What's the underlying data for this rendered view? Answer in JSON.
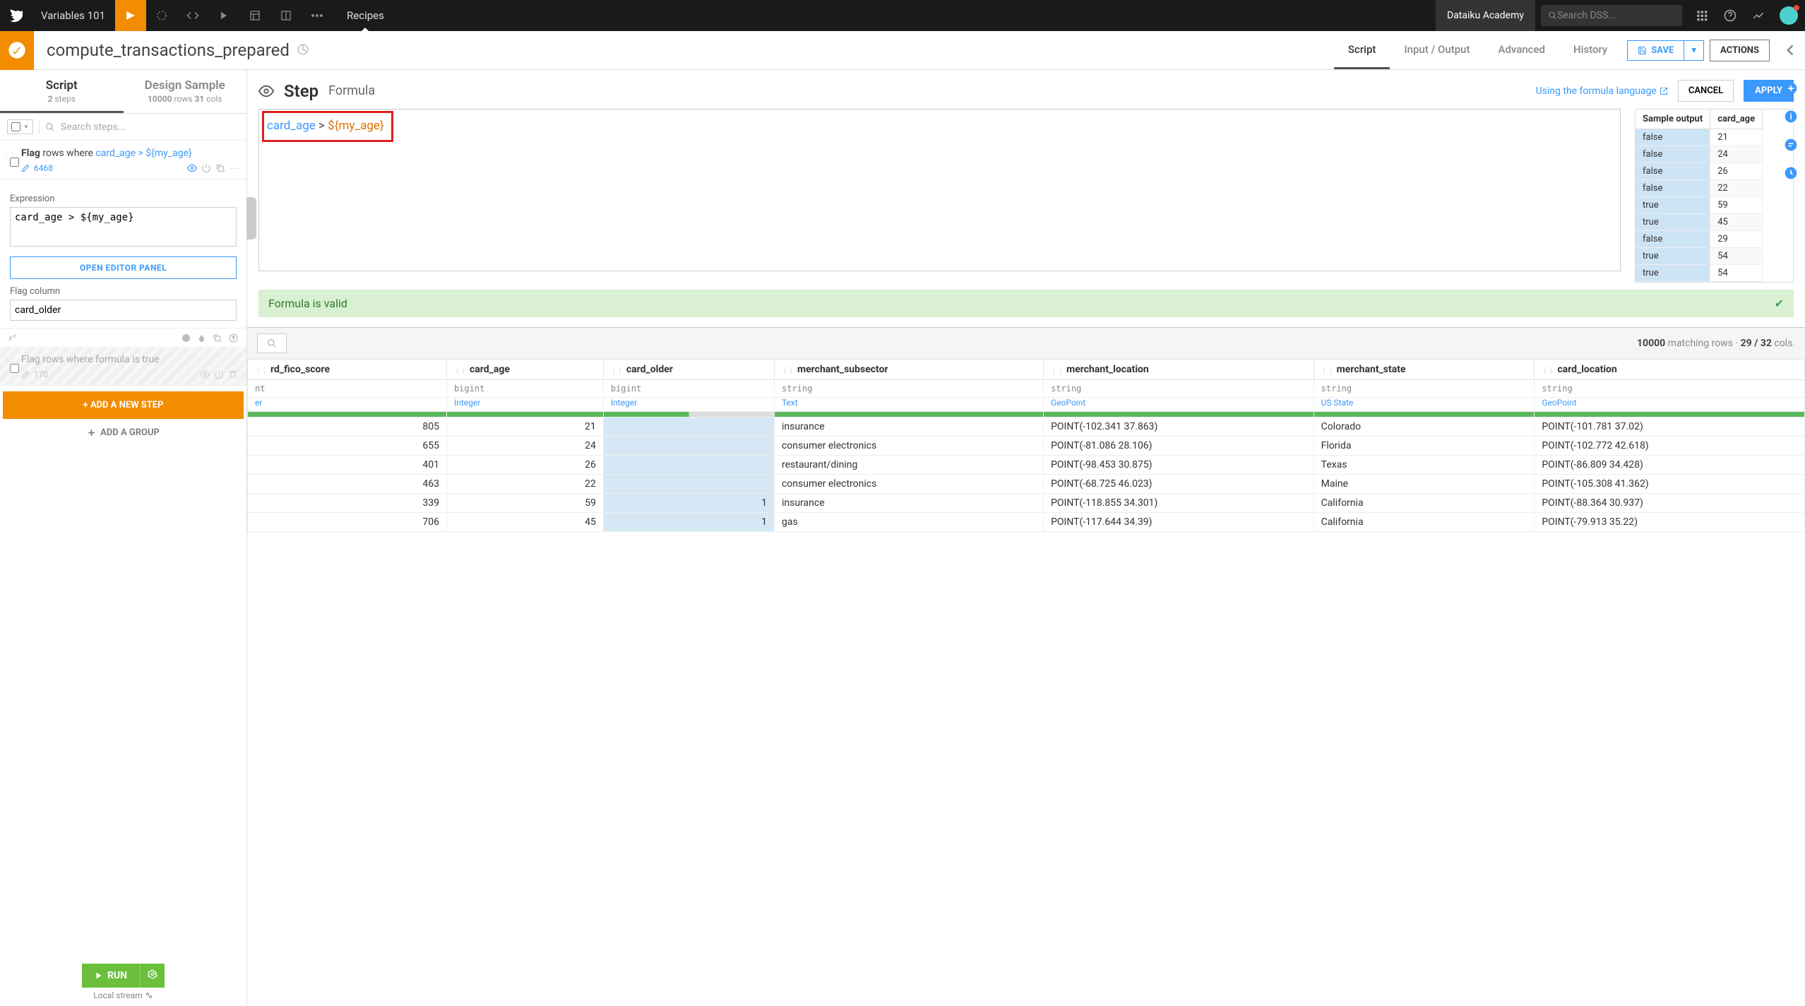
{
  "topnav": {
    "project": "Variables 101",
    "tab": "Recipes",
    "academy": "Dataiku Academy",
    "search_placeholder": "Search DSS..."
  },
  "subheader": {
    "title": "compute_transactions_prepared",
    "tabs": {
      "script": "Script",
      "io": "Input / Output",
      "advanced": "Advanced",
      "history": "History"
    },
    "save": "SAVE",
    "actions": "ACTIONS"
  },
  "left": {
    "tab1_title": "Script",
    "tab1_sub_a": "2",
    "tab1_sub_b": " steps",
    "tab2_title": "Design Sample",
    "tab2_sub_a": "10000",
    "tab2_sub_b": " rows ",
    "tab2_sub_c": "31",
    "tab2_sub_d": " cols",
    "search_placeholder": "Search steps...",
    "step1_prefix": "Flag ",
    "step1_mid": "rows where ",
    "step1_link": "card_age > ${my_age}",
    "step1_count": "6468",
    "label_expr": "Expression",
    "expr_value": "card_age > ${my_age}",
    "open_editor": "OPEN EDITOR PANEL",
    "label_flag": "Flag column",
    "flag_value": "card_older",
    "step2_desc": "Flag rows where formula is true",
    "step2_count": "170",
    "add_step": "+ ADD A NEW STEP",
    "add_group": "ADD A GROUP",
    "run": "RUN",
    "run_label": "Local stream"
  },
  "step_panel": {
    "heading": "Step",
    "type": "Formula",
    "link": "Using the formula language",
    "cancel": "CANCEL",
    "apply": "APPLY",
    "formula_var": "card_age",
    "formula_op": " > ",
    "formula_ref": "${my_age}",
    "status": "Formula is valid",
    "sample_h1": "Sample output",
    "sample_h2": "card_age",
    "samples": [
      [
        "false",
        "21"
      ],
      [
        "false",
        "24"
      ],
      [
        "false",
        "26"
      ],
      [
        "false",
        "22"
      ],
      [
        "true",
        "59"
      ],
      [
        "true",
        "45"
      ],
      [
        "false",
        "29"
      ],
      [
        "true",
        "54"
      ],
      [
        "true",
        "54"
      ]
    ]
  },
  "preview": {
    "stats_a": "10000",
    "stats_b": " matching rows · ",
    "stats_c": "29 / 32",
    "stats_d": " cols.",
    "columns": [
      {
        "name": "rd_fico_score",
        "type": "nt",
        "meaning": "er",
        "align": "num",
        "fill": "full"
      },
      {
        "name": "card_age",
        "type": "bigint",
        "meaning": "Integer",
        "align": "num",
        "fill": "full"
      },
      {
        "name": "card_older",
        "type": "bigint",
        "meaning": "Integer",
        "align": "num",
        "fill": "partial",
        "shaded": true
      },
      {
        "name": "merchant_subsector",
        "type": "string",
        "meaning": "Text",
        "align": "text",
        "fill": "full"
      },
      {
        "name": "merchant_location",
        "type": "string",
        "meaning": "GeoPoint",
        "align": "text",
        "fill": "full"
      },
      {
        "name": "merchant_state",
        "type": "string",
        "meaning": "US State",
        "align": "text",
        "fill": "full"
      },
      {
        "name": "card_location",
        "type": "string",
        "meaning": "GeoPoint",
        "align": "text",
        "fill": "full"
      }
    ],
    "rows": [
      [
        "805",
        "21",
        "",
        "insurance",
        "POINT(-102.341 37.863)",
        "Colorado",
        "POINT(-101.781 37.02)"
      ],
      [
        "655",
        "24",
        "",
        "consumer electronics",
        "POINT(-81.086 28.106)",
        "Florida",
        "POINT(-102.772 42.618)"
      ],
      [
        "401",
        "26",
        "",
        "restaurant/dining",
        "POINT(-98.453 30.875)",
        "Texas",
        "POINT(-86.809 34.428)"
      ],
      [
        "463",
        "22",
        "",
        "consumer electronics",
        "POINT(-68.725 46.023)",
        "Maine",
        "POINT(-105.308 41.362)"
      ],
      [
        "339",
        "59",
        "1",
        "insurance",
        "POINT(-118.855 34.301)",
        "California",
        "POINT(-88.364 30.937)"
      ],
      [
        "706",
        "45",
        "1",
        "gas",
        "POINT(-117.644 34.39)",
        "California",
        "POINT(-79.913 35.22)"
      ]
    ]
  }
}
